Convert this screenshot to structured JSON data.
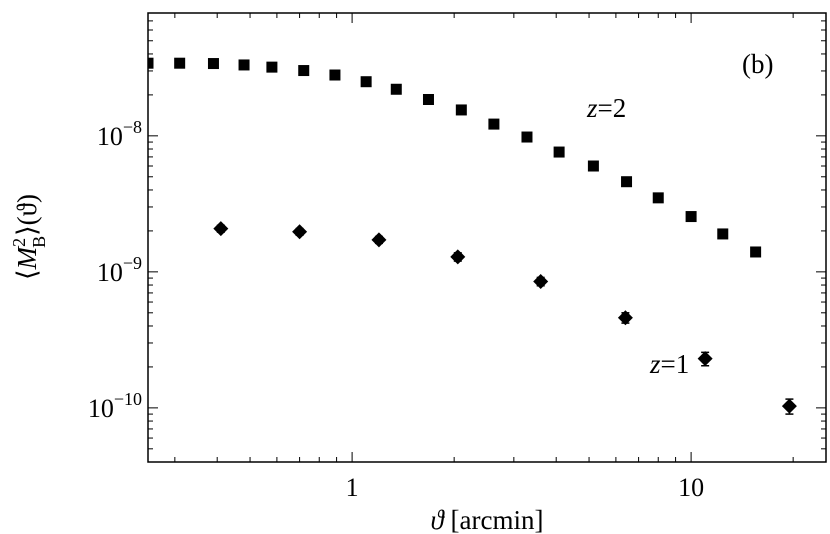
{
  "chart_data": {
    "type": "scatter",
    "x_scale": "log",
    "y_scale": "log",
    "xlim": [
      0.25,
      25
    ],
    "ylim": [
      4e-11,
      8e-08
    ],
    "grid": false,
    "xlabel": {
      "symbol": "ϑ",
      "text": " [arcmin]"
    },
    "ylabel": {
      "open": "⟨",
      "symbol": "M",
      "sup": "2",
      "sub": "B",
      "close": "⟩(ϑ)"
    },
    "x_ticks": [
      {
        "value": 1,
        "label": "1"
      },
      {
        "value": 10,
        "label": "10"
      }
    ],
    "y_ticks": [
      {
        "value": 1e-08,
        "base": "10",
        "exp": "−8"
      },
      {
        "value": 1e-09,
        "base": "10",
        "exp": "−9"
      },
      {
        "value": 1e-10,
        "base": "10",
        "exp": "−10"
      }
    ],
    "panel_label": "(b)",
    "series": [
      {
        "label_var": "z",
        "label_eq": "=2",
        "marker": "square",
        "x": [
          0.25,
          0.31,
          0.39,
          0.48,
          0.58,
          0.72,
          0.89,
          1.1,
          1.35,
          1.68,
          2.1,
          2.62,
          3.28,
          4.08,
          5.15,
          6.45,
          8.0,
          10.0,
          12.4,
          15.5
        ],
        "y": [
          3.42e-08,
          3.42e-08,
          3.4e-08,
          3.32e-08,
          3.2e-08,
          3.02e-08,
          2.8e-08,
          2.5e-08,
          2.2e-08,
          1.85e-08,
          1.55e-08,
          1.22e-08,
          9.8e-09,
          7.6e-09,
          6e-09,
          4.6e-09,
          3.5e-09,
          2.55e-09,
          1.9e-09,
          1.4e-09
        ]
      },
      {
        "label_var": "z",
        "label_eq": "=1",
        "marker": "diamond",
        "x": [
          0.41,
          0.7,
          1.2,
          2.05,
          3.6,
          6.4,
          11.0,
          19.5
        ],
        "y": [
          2.08e-09,
          1.97e-09,
          1.72e-09,
          1.29e-09,
          8.5e-10,
          4.6e-10,
          2.3e-10,
          1.03e-10
        ],
        "err": [
          1.2e-10,
          1.1e-10,
          1e-10,
          9e-11,
          6e-11,
          4e-11,
          2.6e-11,
          1.3e-11
        ]
      }
    ]
  }
}
